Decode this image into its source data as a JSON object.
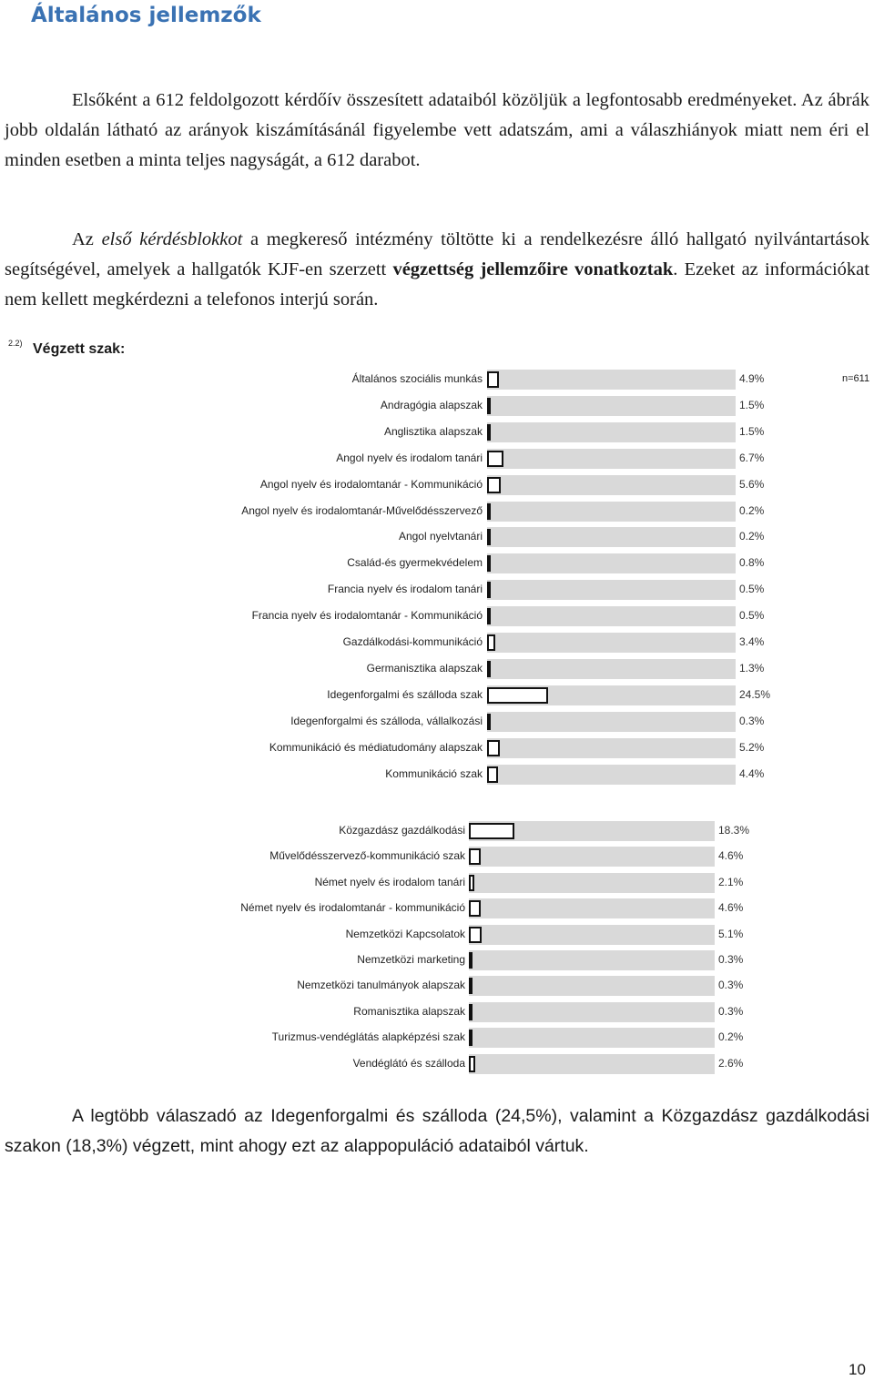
{
  "heading": "Általános jellemzők",
  "paragraph1": "Elsőként a 612 feldolgozott kérdőív összesített adataiból közöljük a legfontosabb eredményeket. Az ábrák jobb oldalán látható az arányok kiszámításánál figyelembe vett adatszám, ami a válaszhiányok miatt nem éri el minden esetben a minta teljes nagyságát, a 612 darabot.",
  "paragraph2": {
    "part1": "Az ",
    "italic": "első kérdésblokkot",
    "part2": " a megkereső intézmény töltötte ki a rendelkezésre álló hallgató nyilvántartások segítségével, amelyek a hallgatók KJF-en szerzett ",
    "bold": "végzettség jellemzőire vonatkoztak",
    "part3": ". Ezeket az információkat nem kellett megkérdezni a telefonos interjú során."
  },
  "figure": {
    "number": "2.2)",
    "title": "Végzett szak:",
    "n": "n=611"
  },
  "chart_data": {
    "type": "bar",
    "orientation": "horizontal",
    "title": "Végzett szak:",
    "n": "n=611",
    "unit": "%",
    "groups": [
      {
        "categories": [
          "Általános szociális munkás",
          "Andragógia alapszak",
          "Anglisztika alapszak",
          "Angol nyelv és irodalom tanári",
          "Angol nyelv és irodalomtanár - Kommunikáció",
          "Angol nyelv és irodalomtanár-Művelődésszervező",
          "Angol nyelvtanári",
          "Család-és gyermekvédelem",
          "Francia nyelv és irodalom tanári",
          "Francia nyelv és irodalomtanár - Kommunikáció",
          "Gazdálkodási-kommunikáció",
          "Germanisztika alapszak",
          "Idegenforgalmi és szálloda szak",
          "Idegenforgalmi és szálloda, vállalkozási",
          "Kommunikáció és médiatudomány alapszak",
          "Kommunikáció szak"
        ],
        "values": [
          4.9,
          1.5,
          1.5,
          6.7,
          5.6,
          0.2,
          0.2,
          0.8,
          0.5,
          0.5,
          3.4,
          1.3,
          24.5,
          0.3,
          5.2,
          4.4
        ],
        "labels": [
          "4.9%",
          "1.5%",
          "1.5%",
          "6.7%",
          "5.6%",
          "0.2%",
          "0.2%",
          "0.8%",
          "0.5%",
          "0.5%",
          "3.4%",
          "1.3%",
          "24.5%",
          "0.3%",
          "5.2%",
          "4.4%"
        ]
      },
      {
        "categories": [
          "Közgazdász gazdálkodási",
          "Művelődésszervező-kommunikáció szak",
          "Német nyelv és irodalom tanári",
          "Német nyelv és irodalomtanár - kommunikáció",
          "Nemzetközi Kapcsolatok",
          "Nemzetközi marketing",
          "Nemzetközi tanulmányok alapszak",
          "Romanisztika alapszak",
          "Turizmus-vendéglátás alapképzési szak",
          "Vendéglátó és szálloda"
        ],
        "values": [
          18.3,
          4.6,
          2.1,
          4.6,
          5.1,
          0.3,
          0.3,
          0.3,
          0.2,
          2.6
        ],
        "labels": [
          "18.3%",
          "4.6%",
          "2.1%",
          "4.6%",
          "5.1%",
          "0.3%",
          "0.3%",
          "0.3%",
          "0.2%",
          "2.6%"
        ]
      }
    ]
  },
  "paragraph3": "A legtöbb válaszadó az Idegenforgalmi és szálloda (24,5%), valamint a Közgazdász gazdálkodási szakon (18,3%) végzett, mint ahogy ezt az alappopuláció adataiból vártuk.",
  "page_number": "10"
}
